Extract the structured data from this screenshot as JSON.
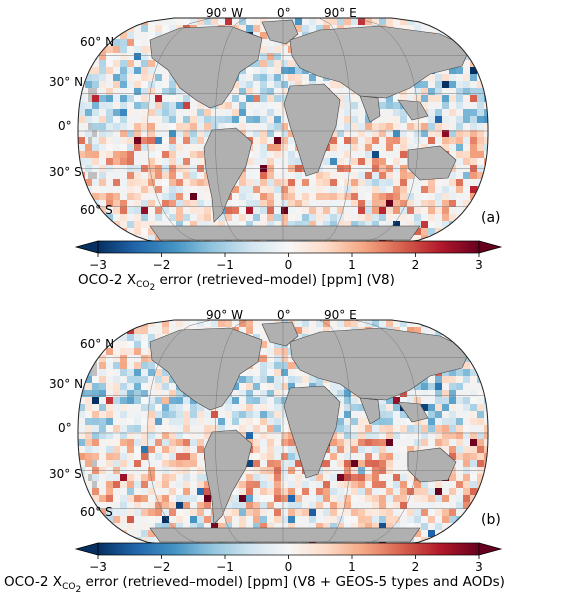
{
  "panels": [
    {
      "id": "a",
      "tag": "(a)",
      "lon_labels": [
        "90° W",
        "0°",
        "90° E"
      ],
      "lat_labels": [
        "60° N",
        "30° N",
        "0°",
        "30° S",
        "60° S"
      ],
      "colorbar": {
        "ticks": [
          "−3",
          "−2",
          "−1",
          "0",
          "1",
          "2",
          "3"
        ],
        "title_prefix": "OCO-2 X",
        "title_sub": "CO",
        "title_subsub": "2",
        "title_suffix": " error (retrieved–model) [ppm] (V8)"
      }
    },
    {
      "id": "b",
      "tag": "(b)",
      "lon_labels": [
        "90° W",
        "0°",
        "90° E"
      ],
      "lat_labels": [
        "60° N",
        "30° N",
        "0°",
        "30° S",
        "60° S"
      ],
      "colorbar": {
        "ticks": [
          "−3",
          "−2",
          "−1",
          "0",
          "1",
          "2",
          "3"
        ],
        "title_prefix": "OCO-2 X",
        "title_sub": "CO",
        "title_subsub": "2",
        "title_suffix": " error (retrieved–model) [ppm] (V8 + GEOS-5 types and AODs)"
      }
    }
  ],
  "colormap": {
    "name": "RdBu_r",
    "vmin": -3,
    "vmax": 3,
    "stops": [
      "#053061",
      "#2166ac",
      "#4393c3",
      "#92c5de",
      "#d1e5f0",
      "#f7f7f7",
      "#fddbc7",
      "#f4a582",
      "#d6604d",
      "#b2182b",
      "#67001f"
    ],
    "land_color": "#b0b0b0",
    "missing_band_color": "#c0c0c0"
  }
}
